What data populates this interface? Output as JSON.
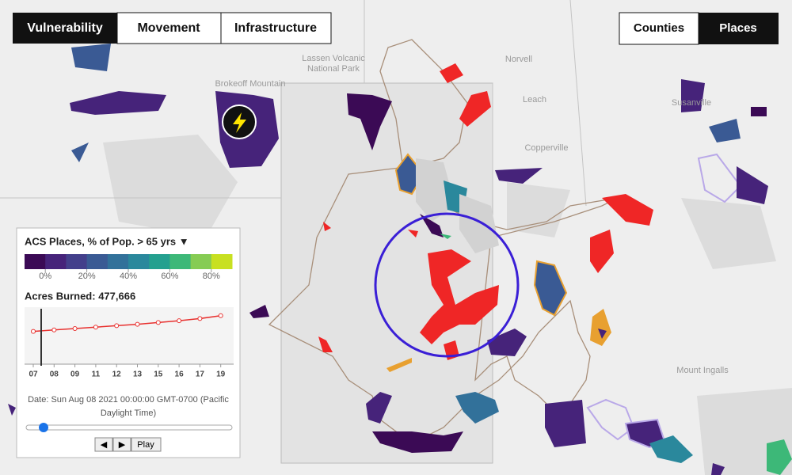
{
  "tabs": {
    "layers": [
      "Vulnerability",
      "Movement",
      "Infrastructure"
    ],
    "geography": [
      "Counties",
      "Places"
    ]
  },
  "map_labels": [
    "Lassen Volcanic",
    "National Park",
    "Brokeoff Mountain",
    "Norvell",
    "Leach",
    "Copperville",
    "Susanville",
    "Mount Ingalls"
  ],
  "legend": {
    "title": "ACS Places, % of Pop. > 65 yrs ▼",
    "colors": [
      "#3b0a55",
      "#46237a",
      "#433f8b",
      "#3a5a94",
      "#32719a",
      "#2a889c",
      "#24a08f",
      "#3db878",
      "#86cc54",
      "#c8e021"
    ],
    "range": [
      -10,
      90
    ],
    "ticks": [
      {
        "value": 0,
        "label": "0%"
      },
      {
        "value": 20,
        "label": "20%"
      },
      {
        "value": 40,
        "label": "40%"
      },
      {
        "value": 60,
        "label": "60%"
      },
      {
        "value": 80,
        "label": "80%"
      }
    ]
  },
  "chart_data": {
    "type": "line",
    "title": "Acres Burned: 477,666",
    "categories": [
      "07",
      "08",
      "09",
      "11",
      "12",
      "13",
      "15",
      "16",
      "17",
      "19"
    ],
    "values": [
      460000,
      480000,
      500000,
      520000,
      540000,
      560000,
      585000,
      610000,
      640000,
      680000
    ],
    "ylim": [
      0,
      800000
    ],
    "color": "#e8312f"
  },
  "date_text": "Date: Sun Aug 08 2021 00:00:00 GMT-0700 (Pacific Daylight Time)",
  "controls": [
    "◀",
    "▶",
    "Play"
  ]
}
